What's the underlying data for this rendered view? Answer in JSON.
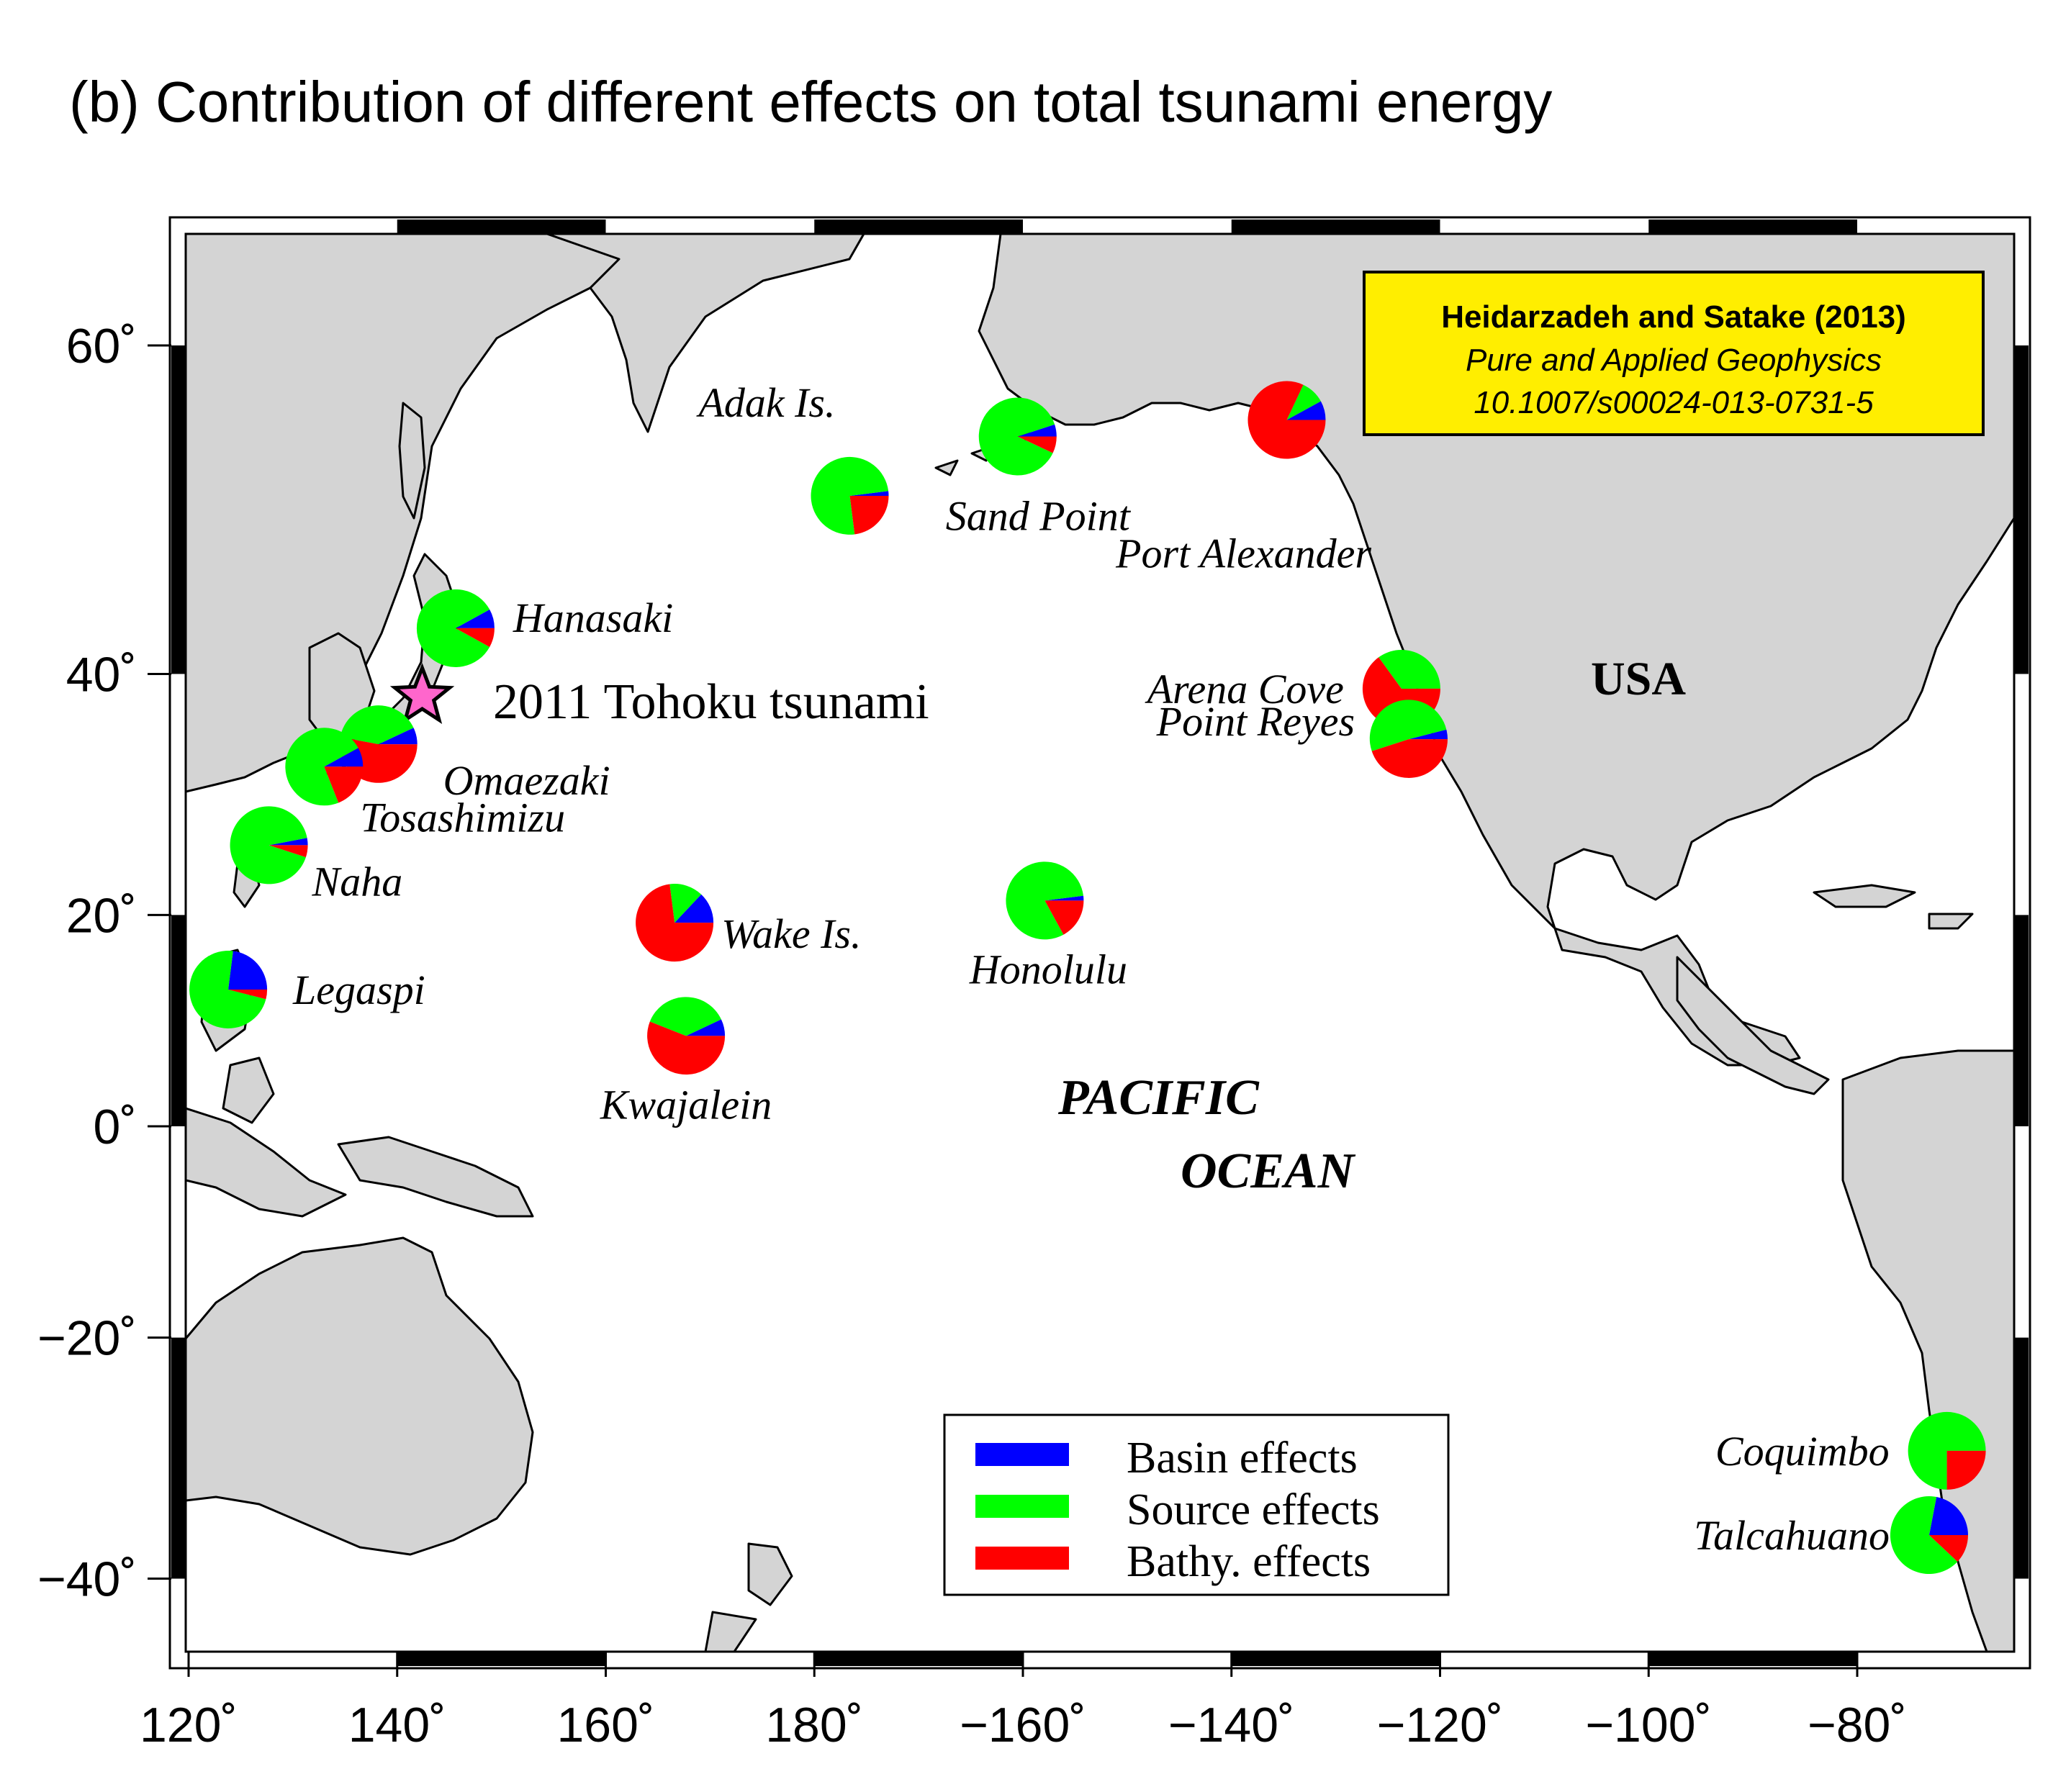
{
  "title": "(b) Contribution of different effects on total tsunami energy",
  "colors": {
    "basin": "#0000ff",
    "source": "#00ff00",
    "bathy": "#ff0000",
    "land": "#d4d4d4",
    "ocean": "#ffffff",
    "citation_bg": "#ffee00",
    "epicenter_star": "#ff66cc"
  },
  "map": {
    "lon_range": [
      120,
      290
    ],
    "lat_range": [
      -45,
      67
    ],
    "x_ticks": [
      {
        "lon": 120,
        "label": "120˚"
      },
      {
        "lon": 140,
        "label": "140˚"
      },
      {
        "lon": 160,
        "label": "160˚"
      },
      {
        "lon": 180,
        "label": "180˚"
      },
      {
        "lon": 200,
        "label": "−160˚"
      },
      {
        "lon": 220,
        "label": "−140˚"
      },
      {
        "lon": 240,
        "label": "−120˚"
      },
      {
        "lon": 260,
        "label": "−100˚"
      },
      {
        "lon": 280,
        "label": "−80˚"
      }
    ],
    "y_ticks": [
      {
        "lat": 60,
        "label": "60˚"
      },
      {
        "lat": 40,
        "label": "40˚"
      },
      {
        "lat": 20,
        "label": "20˚"
      },
      {
        "lat": 0,
        "label": "0˚"
      },
      {
        "lat": -20,
        "label": "−20˚"
      },
      {
        "lat": -40,
        "label": "−40˚"
      }
    ]
  },
  "citation": {
    "authors": "Heidarzadeh and Satake (2013)",
    "journal": "Pure and Applied Geophysics",
    "doi": "10.1007/s00024-013-0731-5"
  },
  "epicenter": {
    "label": "2011 Tohoku tsunami",
    "lon": 142.4,
    "lat": 38.3
  },
  "region_labels": {
    "usa": "USA",
    "ocean_line1": "PACIFIC",
    "ocean_line2": "OCEAN"
  },
  "legend": {
    "basin": "Basin effects",
    "source": "Source effects",
    "bathy": "Bathy. effects"
  },
  "stations": [
    {
      "name": "Adak Is.",
      "lon": 183.4,
      "lat": 51.9,
      "basin": 2,
      "source": 75,
      "bathy": 23
    },
    {
      "name": "Sand Point",
      "lon": 199.5,
      "lat": 55.3,
      "basin": 5,
      "source": 88,
      "bathy": 7
    },
    {
      "name": "Port Alexander",
      "lon": 225.3,
      "lat": 56.2,
      "basin": 8,
      "source": 10,
      "bathy": 82
    },
    {
      "name": "Hanasaki",
      "lon": 145.6,
      "lat": 43.3,
      "basin": 8,
      "source": 84,
      "bathy": 8
    },
    {
      "name": "Arena Cove",
      "lon": 236.3,
      "lat": 38.9,
      "basin": 0,
      "source": 35,
      "bathy": 65
    },
    {
      "name": "Point Reyes",
      "lon": 237.0,
      "lat": 35.0,
      "basin": 4,
      "source": 51,
      "bathy": 45
    },
    {
      "name": "Omaezaki",
      "lon": 138.2,
      "lat": 34.6,
      "basin": 7,
      "source": 40,
      "bathy": 53
    },
    {
      "name": "Tosashimizu",
      "lon": 133.0,
      "lat": 32.8,
      "basin": 8,
      "source": 73,
      "bathy": 19
    },
    {
      "name": "Naha",
      "lon": 127.7,
      "lat": 26.2,
      "basin": 3,
      "source": 92,
      "bathy": 5
    },
    {
      "name": "Wake Is.",
      "lon": 166.6,
      "lat": 19.3,
      "basin": 13,
      "source": 14,
      "bathy": 73
    },
    {
      "name": "Honolulu",
      "lon": 202.1,
      "lat": 21.3,
      "basin": 2,
      "source": 81,
      "bathy": 17
    },
    {
      "name": "Legaspi",
      "lon": 123.8,
      "lat": 13.1,
      "basin": 23,
      "source": 73,
      "bathy": 4
    },
    {
      "name": "Kwajalein",
      "lon": 167.7,
      "lat": 8.7,
      "basin": 7,
      "source": 37,
      "bathy": 56
    },
    {
      "name": "Coquimbo",
      "lon": 288.6,
      "lat": -29.9,
      "basin": 0,
      "source": 75,
      "bathy": 25
    },
    {
      "name": "Talcahuano",
      "lon": 286.9,
      "lat": -36.7,
      "basin": 22,
      "source": 66,
      "bathy": 12
    }
  ]
}
